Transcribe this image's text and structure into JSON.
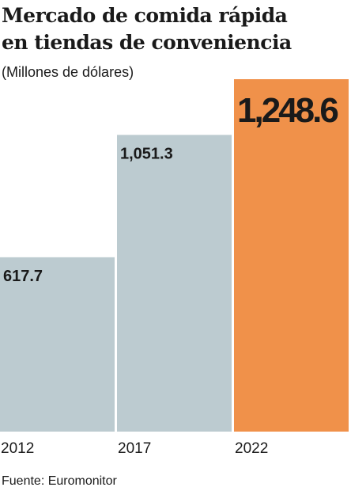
{
  "chart_data": {
    "type": "bar",
    "title": [
      "Mercado de comida rápida",
      "en tiendas de conveniencia"
    ],
    "subtitle": "(Millones de dólares)",
    "categories": [
      "2012",
      "2017",
      "2022"
    ],
    "values": [
      617.7,
      1051.3,
      1248.6
    ],
    "value_labels": [
      "617.7",
      "1,051.3",
      "1,248.6"
    ],
    "colors": [
      "#bccbd0",
      "#bccbd0",
      "#f0914a"
    ],
    "source": "Fuente: Euromonitor"
  }
}
